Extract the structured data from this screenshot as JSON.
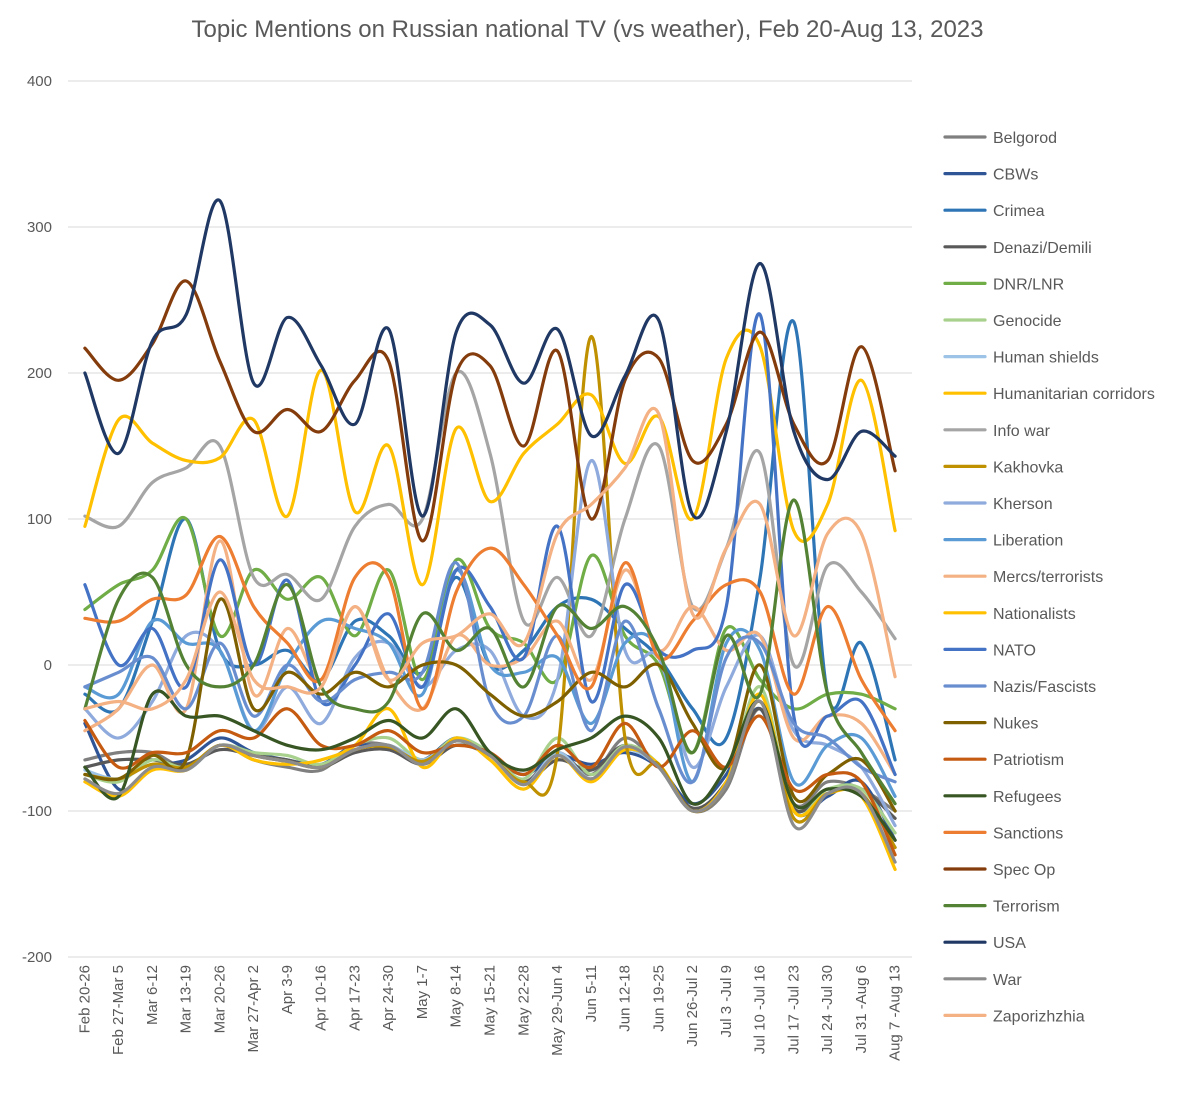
{
  "chart_data": {
    "type": "line",
    "title": "Topic Mentions on Russian national TV (vs weather), Feb 20-Aug 13, 2023",
    "xlabel": "",
    "ylabel": "",
    "ylim": [
      -200,
      400
    ],
    "yticks": [
      -200,
      -100,
      0,
      100,
      200,
      300,
      400
    ],
    "grid": "horizontal",
    "legend": "right",
    "categories": [
      "Feb 20-26",
      "Feb 27-Mar 5",
      "Mar 6-12",
      "Mar 13-19",
      "Mar 20-26",
      "Mar 27-Apr 2",
      "Apr 3-9",
      "Apr 10-16",
      "Apr 17-23",
      "Apr 24-30",
      "May 1-7",
      "May 8-14",
      "May 15-21",
      "May 22-28",
      "May 29-Jun 4",
      "Jun 5-11",
      "Jun 12-18",
      "Jun 19-25",
      "Jun 26-Jul 2",
      "Jul 3 -Jul 9",
      "Jul 10 -Jul 16",
      "Jul 17 -Jul 23",
      "Jul 24 -Jul 30",
      "Jul 31 -Aug 6",
      "Aug 7 -Aug 13"
    ],
    "series": [
      {
        "name": "Belgorod",
        "color": "#7f7f7f",
        "values": [
          -65,
          -60,
          -60,
          -70,
          -55,
          -65,
          -70,
          -72,
          -55,
          -55,
          -65,
          -55,
          -60,
          -80,
          -60,
          -75,
          -50,
          -70,
          -100,
          -85,
          -30,
          -95,
          -80,
          -85,
          -100
        ]
      },
      {
        "name": "CBWs",
        "color": "#2f5597",
        "values": [
          -40,
          -85,
          -70,
          -65,
          -50,
          -60,
          -65,
          -68,
          -55,
          -58,
          -65,
          -50,
          -62,
          -75,
          -62,
          -68,
          -60,
          -70,
          -95,
          -75,
          -30,
          -100,
          -90,
          -80,
          -120
        ]
      },
      {
        "name": "Crimea",
        "color": "#2e75b6",
        "values": [
          -20,
          -30,
          30,
          100,
          10,
          0,
          10,
          -10,
          30,
          20,
          -5,
          60,
          0,
          10,
          40,
          45,
          25,
          5,
          -30,
          -50,
          60,
          235,
          -20,
          15,
          -65
        ]
      },
      {
        "name": "Denazi/Demili",
        "color": "#595959",
        "values": [
          -70,
          -65,
          -65,
          -68,
          -58,
          -62,
          -65,
          -70,
          -60,
          -58,
          -68,
          -55,
          -62,
          -80,
          -65,
          -72,
          -55,
          -70,
          -98,
          -80,
          -30,
          -98,
          -85,
          -85,
          -105
        ]
      },
      {
        "name": "DNR/LNR",
        "color": "#70ad47",
        "values": [
          38,
          55,
          65,
          100,
          20,
          65,
          45,
          60,
          20,
          65,
          -10,
          72,
          25,
          15,
          -10,
          75,
          20,
          0,
          -60,
          25,
          -10,
          -30,
          -20,
          -20,
          -30
        ]
      },
      {
        "name": "Genocide",
        "color": "#a9d18e",
        "values": [
          -75,
          -80,
          -65,
          -70,
          -55,
          -60,
          -62,
          -68,
          -55,
          -50,
          -65,
          -50,
          -60,
          -78,
          -50,
          -75,
          -55,
          -68,
          -100,
          -80,
          -15,
          -100,
          -85,
          -85,
          -115
        ]
      },
      {
        "name": "Human shields",
        "color": "#9dc3e6",
        "values": [
          -72,
          -78,
          -68,
          -72,
          -55,
          -62,
          -66,
          -70,
          -58,
          -55,
          -65,
          -52,
          -62,
          -82,
          -60,
          -78,
          -58,
          -70,
          -100,
          -82,
          -25,
          -105,
          -88,
          -88,
          -125
        ]
      },
      {
        "name": "Humanitarian corridors",
        "color": "#ffc000",
        "values": [
          -80,
          -90,
          -72,
          -72,
          -55,
          -65,
          -68,
          -65,
          -55,
          -30,
          -70,
          -50,
          -65,
          -85,
          -62,
          -80,
          -58,
          -68,
          -100,
          -80,
          -20,
          -100,
          -88,
          -90,
          -140
        ]
      },
      {
        "name": "Info war",
        "color": "#a5a5a5",
        "values": [
          102,
          95,
          125,
          135,
          150,
          60,
          62,
          45,
          95,
          110,
          100,
          200,
          145,
          30,
          60,
          20,
          100,
          150,
          40,
          80,
          145,
          0,
          68,
          50,
          18
        ]
      },
      {
        "name": "Kakhovka",
        "color": "#bf9000",
        "values": [
          -75,
          -78,
          -68,
          -70,
          -55,
          -62,
          -66,
          -70,
          -58,
          -56,
          -66,
          -52,
          -62,
          -80,
          -60,
          225,
          -50,
          -68,
          -100,
          -82,
          -25,
          -105,
          -88,
          -88,
          -125
        ]
      },
      {
        "name": "Kherson",
        "color": "#8faadc",
        "values": [
          -30,
          -50,
          -25,
          20,
          10,
          -45,
          -15,
          -40,
          5,
          15,
          -15,
          10,
          10,
          -35,
          -10,
          140,
          10,
          5,
          -70,
          -15,
          20,
          -45,
          -55,
          -70,
          -110
        ]
      },
      {
        "name": "Liberation",
        "color": "#5b9bd5",
        "values": [
          -15,
          -20,
          30,
          15,
          10,
          -45,
          0,
          30,
          25,
          15,
          -20,
          65,
          0,
          -5,
          5,
          -40,
          15,
          10,
          -80,
          15,
          10,
          -80,
          -55,
          -50,
          -90
        ]
      },
      {
        "name": "Mercs/terrorists",
        "color": "#f4b183",
        "values": [
          -45,
          -30,
          0,
          -30,
          85,
          -20,
          25,
          -10,
          40,
          -10,
          -30,
          20,
          0,
          5,
          30,
          -10,
          65,
          10,
          40,
          10,
          20,
          -50,
          -35,
          -40,
          -75
        ]
      },
      {
        "name": "Nationalists",
        "color": "#ffc000",
        "values": [
          95,
          168,
          152,
          140,
          142,
          168,
          102,
          202,
          105,
          150,
          55,
          162,
          112,
          145,
          165,
          185,
          138,
          170,
          100,
          210,
          218,
          92,
          110,
          195,
          92
        ]
      },
      {
        "name": "NATO",
        "color": "#4472c4",
        "values": [
          55,
          0,
          25,
          -15,
          72,
          0,
          58,
          -25,
          0,
          35,
          -15,
          65,
          40,
          5,
          95,
          -25,
          55,
          10,
          10,
          40,
          240,
          -35,
          -35,
          -25,
          -75
        ]
      },
      {
        "name": "Nazis/Fascists",
        "color": "#698ed0",
        "values": [
          -15,
          -5,
          5,
          -30,
          15,
          -35,
          0,
          -25,
          -10,
          -5,
          -5,
          70,
          -25,
          -35,
          20,
          -45,
          30,
          -30,
          -80,
          5,
          15,
          -40,
          -50,
          -70,
          -80
        ]
      },
      {
        "name": "Nukes",
        "color": "#7f6000",
        "values": [
          -75,
          -78,
          -62,
          -65,
          45,
          -30,
          -5,
          -20,
          -5,
          -15,
          0,
          0,
          -20,
          -35,
          -25,
          -5,
          -15,
          0,
          -40,
          -70,
          0,
          -90,
          -75,
          -65,
          -100
        ]
      },
      {
        "name": "Patriotism",
        "color": "#c55a11",
        "values": [
          -38,
          -70,
          -60,
          -60,
          -45,
          -50,
          -30,
          -55,
          -55,
          -45,
          -60,
          -55,
          -60,
          -75,
          -55,
          -70,
          -40,
          -70,
          -45,
          -70,
          -35,
          -85,
          -75,
          -80,
          -130
        ]
      },
      {
        "name": "Refugees",
        "color": "#375623",
        "values": [
          -70,
          -90,
          -20,
          -35,
          -35,
          -45,
          -55,
          -58,
          -50,
          -38,
          -50,
          -30,
          -60,
          -72,
          -58,
          -50,
          -35,
          -50,
          -95,
          -70,
          -25,
          -95,
          -85,
          -90,
          -120
        ]
      },
      {
        "name": "Sanctions",
        "color": "#ed7d31",
        "values": [
          32,
          30,
          45,
          48,
          88,
          40,
          15,
          -10,
          60,
          60,
          -30,
          50,
          80,
          55,
          20,
          -15,
          70,
          5,
          30,
          55,
          50,
          -20,
          40,
          -10,
          -45
        ]
      },
      {
        "name": "Spec Op",
        "color": "#843c0c",
        "values": [
          217,
          195,
          220,
          263,
          208,
          160,
          175,
          160,
          195,
          208,
          85,
          200,
          205,
          150,
          215,
          100,
          195,
          210,
          140,
          165,
          228,
          165,
          140,
          218,
          133
        ]
      },
      {
        "name": "Terrorism",
        "color": "#548235",
        "values": [
          -30,
          45,
          60,
          0,
          -15,
          0,
          55,
          -15,
          -30,
          -25,
          35,
          10,
          25,
          -15,
          40,
          25,
          40,
          10,
          -60,
          20,
          -20,
          113,
          -20,
          -60,
          -95
        ]
      },
      {
        "name": "USA",
        "color": "#203864",
        "values": [
          200,
          145,
          222,
          240,
          318,
          193,
          238,
          205,
          165,
          230,
          102,
          228,
          233,
          193,
          230,
          157,
          198,
          236,
          103,
          160,
          275,
          160,
          127,
          160,
          143
        ]
      },
      {
        "name": "War",
        "color": "#8c8c8c",
        "values": [
          -78,
          -88,
          -70,
          -72,
          -55,
          -62,
          -66,
          -70,
          -58,
          -55,
          -68,
          -52,
          -62,
          -82,
          -62,
          -78,
          -56,
          -70,
          -100,
          -82,
          -25,
          -110,
          -88,
          -88,
          -135
        ]
      },
      {
        "name": "Zaporizhzhia",
        "color": "#f4b183",
        "values": [
          -30,
          -25,
          -30,
          -10,
          50,
          -10,
          -15,
          -15,
          40,
          -10,
          15,
          20,
          35,
          15,
          90,
          110,
          135,
          172,
          35,
          80,
          110,
          20,
          90,
          90,
          -8
        ]
      }
    ]
  }
}
